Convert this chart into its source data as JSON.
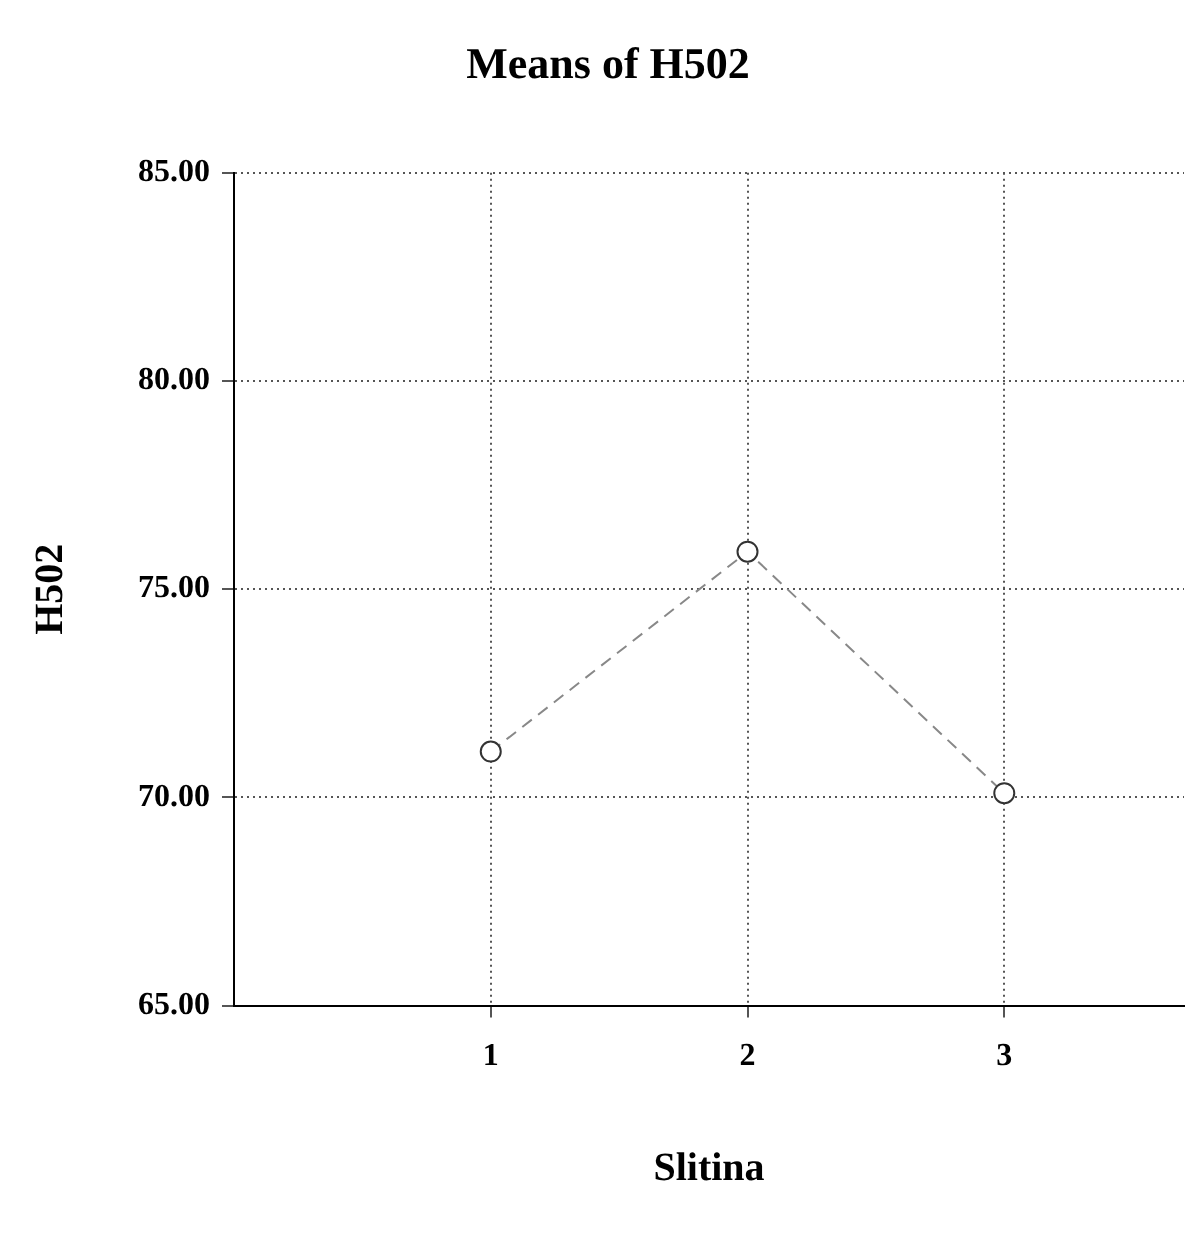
{
  "chart_data": {
    "type": "line",
    "title": "Means of H502",
    "xlabel": "Slitina",
    "ylabel": "H502",
    "x": [
      1,
      2,
      3
    ],
    "series": [
      {
        "color": "#888888",
        "values": [
          71.1,
          75.9,
          70.1
        ]
      }
    ],
    "xlim": [
      0,
      3.7
    ],
    "xticks": [
      1,
      2,
      3
    ],
    "ylim": [
      65,
      85
    ],
    "yticks": [
      {
        "value": 65,
        "label": "65.00"
      },
      {
        "value": 70,
        "label": "70.00"
      },
      {
        "value": 75,
        "label": "75.00"
      },
      {
        "value": 80,
        "label": "80.00"
      },
      {
        "value": 85,
        "label": "85.00"
      }
    ],
    "grid": true,
    "legend": false,
    "marker": "circle",
    "line_style": "dashed"
  }
}
